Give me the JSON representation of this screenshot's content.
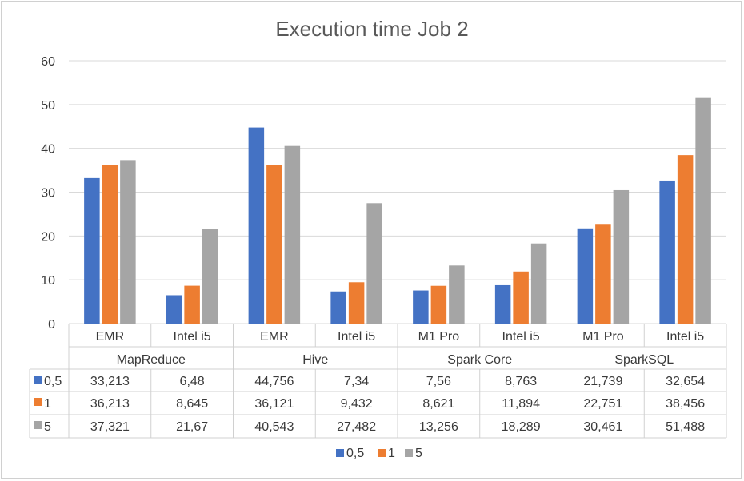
{
  "chart_data": {
    "type": "bar",
    "title": "Execution time Job 2",
    "groups": [
      {
        "name": "MapReduce",
        "categories": [
          "EMR",
          "Intel i5"
        ]
      },
      {
        "name": "Hive",
        "categories": [
          "EMR",
          "Intel i5"
        ]
      },
      {
        "name": "Spark Core",
        "categories": [
          "M1 Pro",
          "Intel i5"
        ]
      },
      {
        "name": "SparkSQL",
        "categories": [
          "M1 Pro",
          "Intel i5"
        ]
      }
    ],
    "categories": [
      "EMR",
      "Intel i5",
      "EMR",
      "Intel i5",
      "M1 Pro",
      "Intel i5",
      "M1 Pro",
      "Intel i5"
    ],
    "series": [
      {
        "name": "0,5",
        "color": "#4472c4",
        "values": [
          33.213,
          6.48,
          44.756,
          7.34,
          7.56,
          8.763,
          21.739,
          32.654
        ],
        "labels": [
          "33,213",
          "6,48",
          "44,756",
          "7,34",
          "7,56",
          "8,763",
          "21,739",
          "32,654"
        ]
      },
      {
        "name": "1",
        "color": "#ed7d31",
        "values": [
          36.213,
          8.645,
          36.121,
          9.432,
          8.621,
          11.894,
          22.751,
          38.456
        ],
        "labels": [
          "36,213",
          "8,645",
          "36,121",
          "9,432",
          "8,621",
          "11,894",
          "22,751",
          "38,456"
        ]
      },
      {
        "name": "5",
        "color": "#a5a5a5",
        "values": [
          37.321,
          21.67,
          40.543,
          27.482,
          13.256,
          18.289,
          30.461,
          51.488
        ],
        "labels": [
          "37,321",
          "21,67",
          "40,543",
          "27,482",
          "13,256",
          "18,289",
          "30,461",
          "51,488"
        ]
      }
    ],
    "ylim": [
      0,
      60
    ],
    "yticks": [
      0,
      10,
      20,
      30,
      40,
      50,
      60
    ],
    "grid": true,
    "data_table": true,
    "legend": "bottom"
  }
}
